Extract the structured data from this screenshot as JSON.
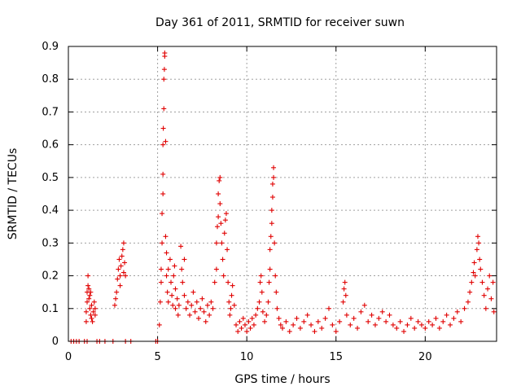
{
  "chart_data": {
    "type": "scatter",
    "title": "Day 361 of 2011, SRMTID for receiver suwn",
    "xlabel": "GPS time / hours",
    "ylabel": "SRMTID / TECUs",
    "xlim": [
      0,
      24
    ],
    "ylim": [
      0,
      0.9
    ],
    "xticks": [
      "0",
      "5",
      "10",
      "15",
      "20"
    ],
    "yticks": [
      "0",
      "0.1",
      "0.2",
      "0.3",
      "0.4",
      "0.5",
      "0.6",
      "0.7",
      "0.8",
      "0.9"
    ],
    "grid": true,
    "marker": "+",
    "color": "#e00000",
    "series": [
      {
        "name": "SRMTID",
        "points": [
          [
            0.15,
            0
          ],
          [
            0.3,
            0
          ],
          [
            0.45,
            0
          ],
          [
            0.6,
            0
          ],
          [
            0.9,
            0
          ],
          [
            1.05,
            0
          ],
          [
            1.6,
            0
          ],
          [
            1.75,
            0
          ],
          [
            2.05,
            0
          ],
          [
            2.5,
            0
          ],
          [
            3.2,
            0
          ],
          [
            3.5,
            0
          ],
          [
            4.9,
            0
          ],
          [
            5.0,
            0
          ],
          [
            1.0,
            0.06
          ],
          [
            1.0,
            0.09
          ],
          [
            1.05,
            0.12
          ],
          [
            1.05,
            0.15
          ],
          [
            1.1,
            0.17
          ],
          [
            1.1,
            0.2
          ],
          [
            1.15,
            0.16
          ],
          [
            1.2,
            0.14
          ],
          [
            1.2,
            0.1
          ],
          [
            1.25,
            0.08
          ],
          [
            1.3,
            0.07
          ],
          [
            1.3,
            0.11
          ],
          [
            1.35,
            0.06
          ],
          [
            1.4,
            0.09
          ],
          [
            1.45,
            0.12
          ],
          [
            1.5,
            0.08
          ],
          [
            1.5,
            0.1
          ],
          [
            1.15,
            0.13
          ],
          [
            1.25,
            0.15
          ],
          [
            2.6,
            0.11
          ],
          [
            2.7,
            0.15
          ],
          [
            2.75,
            0.19
          ],
          [
            2.8,
            0.22
          ],
          [
            2.85,
            0.25
          ],
          [
            2.9,
            0.2
          ],
          [
            2.95,
            0.23
          ],
          [
            3.0,
            0.26
          ],
          [
            3.05,
            0.28
          ],
          [
            3.1,
            0.3
          ],
          [
            3.1,
            0.21
          ],
          [
            3.15,
            0.24
          ],
          [
            3.2,
            0.2
          ],
          [
            2.65,
            0.13
          ],
          [
            2.9,
            0.17
          ],
          [
            5.1,
            0.05
          ],
          [
            5.15,
            0.12
          ],
          [
            5.2,
            0.18
          ],
          [
            5.2,
            0.22
          ],
          [
            5.25,
            0.3
          ],
          [
            5.25,
            0.39
          ],
          [
            5.3,
            0.45
          ],
          [
            5.3,
            0.51
          ],
          [
            5.3,
            0.6
          ],
          [
            5.32,
            0.65
          ],
          [
            5.35,
            0.71
          ],
          [
            5.35,
            0.8
          ],
          [
            5.38,
            0.83
          ],
          [
            5.4,
            0.87
          ],
          [
            5.4,
            0.88
          ],
          [
            5.45,
            0.61
          ],
          [
            5.45,
            0.32
          ],
          [
            5.5,
            0.27
          ],
          [
            5.5,
            0.2
          ],
          [
            5.55,
            0.15
          ],
          [
            5.6,
            0.12
          ],
          [
            5.6,
            0.22
          ],
          [
            5.7,
            0.25
          ],
          [
            5.75,
            0.18
          ],
          [
            5.8,
            0.14
          ],
          [
            5.85,
            0.11
          ],
          [
            5.9,
            0.2
          ],
          [
            5.95,
            0.23
          ],
          [
            6.0,
            0.16
          ],
          [
            6.0,
            0.1
          ],
          [
            6.1,
            0.13
          ],
          [
            6.15,
            0.08
          ],
          [
            6.2,
            0.11
          ],
          [
            6.3,
            0.29
          ],
          [
            6.35,
            0.22
          ],
          [
            6.4,
            0.18
          ],
          [
            6.5,
            0.25
          ],
          [
            6.5,
            0.14
          ],
          [
            6.6,
            0.1
          ],
          [
            6.7,
            0.12
          ],
          [
            6.8,
            0.08
          ],
          [
            6.9,
            0.11
          ],
          [
            7.0,
            0.15
          ],
          [
            7.1,
            0.09
          ],
          [
            7.2,
            0.12
          ],
          [
            7.3,
            0.07
          ],
          [
            7.4,
            0.1
          ],
          [
            7.5,
            0.13
          ],
          [
            7.6,
            0.09
          ],
          [
            7.7,
            0.06
          ],
          [
            7.8,
            0.11
          ],
          [
            7.9,
            0.08
          ],
          [
            8.0,
            0.12
          ],
          [
            8.1,
            0.1
          ],
          [
            8.2,
            0.18
          ],
          [
            8.3,
            0.22
          ],
          [
            8.3,
            0.3
          ],
          [
            8.35,
            0.35
          ],
          [
            8.4,
            0.38
          ],
          [
            8.4,
            0.45
          ],
          [
            8.45,
            0.49
          ],
          [
            8.5,
            0.5
          ],
          [
            8.5,
            0.42
          ],
          [
            8.55,
            0.36
          ],
          [
            8.6,
            0.3
          ],
          [
            8.65,
            0.25
          ],
          [
            8.7,
            0.2
          ],
          [
            8.75,
            0.33
          ],
          [
            8.8,
            0.37
          ],
          [
            8.85,
            0.39
          ],
          [
            8.9,
            0.28
          ],
          [
            8.95,
            0.18
          ],
          [
            9.0,
            0.12
          ],
          [
            9.05,
            0.08
          ],
          [
            9.1,
            0.1
          ],
          [
            9.15,
            0.14
          ],
          [
            9.2,
            0.17
          ],
          [
            9.3,
            0.11
          ],
          [
            9.4,
            0.05
          ],
          [
            9.5,
            0.03
          ],
          [
            9.6,
            0.06
          ],
          [
            9.7,
            0.04
          ],
          [
            9.8,
            0.07
          ],
          [
            9.9,
            0.05
          ],
          [
            10.0,
            0.03
          ],
          [
            10.1,
            0.06
          ],
          [
            10.2,
            0.04
          ],
          [
            10.3,
            0.07
          ],
          [
            10.4,
            0.05
          ],
          [
            10.5,
            0.08
          ],
          [
            10.6,
            0.1
          ],
          [
            10.7,
            0.12
          ],
          [
            10.75,
            0.18
          ],
          [
            10.8,
            0.2
          ],
          [
            10.85,
            0.15
          ],
          [
            10.9,
            0.09
          ],
          [
            11.0,
            0.06
          ],
          [
            11.1,
            0.08
          ],
          [
            11.2,
            0.12
          ],
          [
            11.25,
            0.18
          ],
          [
            11.3,
            0.22
          ],
          [
            11.3,
            0.28
          ],
          [
            11.35,
            0.32
          ],
          [
            11.4,
            0.36
          ],
          [
            11.4,
            0.4
          ],
          [
            11.45,
            0.44
          ],
          [
            11.45,
            0.48
          ],
          [
            11.5,
            0.5
          ],
          [
            11.5,
            0.53
          ],
          [
            11.55,
            0.3
          ],
          [
            11.6,
            0.2
          ],
          [
            11.65,
            0.15
          ],
          [
            11.7,
            0.1
          ],
          [
            11.8,
            0.07
          ],
          [
            11.9,
            0.05
          ],
          [
            12.0,
            0.04
          ],
          [
            12.2,
            0.06
          ],
          [
            12.4,
            0.03
          ],
          [
            12.6,
            0.05
          ],
          [
            12.8,
            0.07
          ],
          [
            13.0,
            0.04
          ],
          [
            13.2,
            0.06
          ],
          [
            13.4,
            0.08
          ],
          [
            13.6,
            0.05
          ],
          [
            13.8,
            0.03
          ],
          [
            14.0,
            0.06
          ],
          [
            14.2,
            0.04
          ],
          [
            14.4,
            0.07
          ],
          [
            14.6,
            0.1
          ],
          [
            14.8,
            0.05
          ],
          [
            15.0,
            0.03
          ],
          [
            15.2,
            0.06
          ],
          [
            15.4,
            0.12
          ],
          [
            15.45,
            0.16
          ],
          [
            15.5,
            0.18
          ],
          [
            15.55,
            0.14
          ],
          [
            15.6,
            0.08
          ],
          [
            15.8,
            0.05
          ],
          [
            16.0,
            0.07
          ],
          [
            16.2,
            0.04
          ],
          [
            16.4,
            0.09
          ],
          [
            16.6,
            0.11
          ],
          [
            16.8,
            0.06
          ],
          [
            17.0,
            0.08
          ],
          [
            17.2,
            0.05
          ],
          [
            17.4,
            0.07
          ],
          [
            17.6,
            0.09
          ],
          [
            17.8,
            0.06
          ],
          [
            18.0,
            0.08
          ],
          [
            18.2,
            0.05
          ],
          [
            18.4,
            0.04
          ],
          [
            18.6,
            0.06
          ],
          [
            18.8,
            0.03
          ],
          [
            19.0,
            0.05
          ],
          [
            19.2,
            0.07
          ],
          [
            19.4,
            0.04
          ],
          [
            19.6,
            0.06
          ],
          [
            19.8,
            0.05
          ],
          [
            20.0,
            0.04
          ],
          [
            20.2,
            0.06
          ],
          [
            20.4,
            0.05
          ],
          [
            20.6,
            0.07
          ],
          [
            20.8,
            0.04
          ],
          [
            21.0,
            0.06
          ],
          [
            21.2,
            0.08
          ],
          [
            21.4,
            0.05
          ],
          [
            21.6,
            0.07
          ],
          [
            21.8,
            0.09
          ],
          [
            22.0,
            0.06
          ],
          [
            22.2,
            0.1
          ],
          [
            22.4,
            0.12
          ],
          [
            22.5,
            0.15
          ],
          [
            22.6,
            0.18
          ],
          [
            22.7,
            0.21
          ],
          [
            22.75,
            0.24
          ],
          [
            22.8,
            0.2
          ],
          [
            22.9,
            0.28
          ],
          [
            22.95,
            0.32
          ],
          [
            23.0,
            0.3
          ],
          [
            23.05,
            0.25
          ],
          [
            23.1,
            0.22
          ],
          [
            23.2,
            0.18
          ],
          [
            23.3,
            0.14
          ],
          [
            23.4,
            0.1
          ],
          [
            23.5,
            0.16
          ],
          [
            23.6,
            0.2
          ],
          [
            23.7,
            0.13
          ],
          [
            23.8,
            0.18
          ],
          [
            23.85,
            0.09
          ]
        ]
      }
    ]
  }
}
